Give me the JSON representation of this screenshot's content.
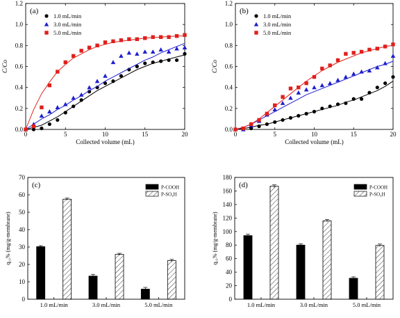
{
  "colors": {
    "series_1": "#000000",
    "series_2": "#1f1fcf",
    "series_3": "#e0201c",
    "bar_solid": "#000000"
  },
  "chart_data": [
    {
      "type": "scatter",
      "panel_label": "(a)",
      "xlabel": "Collected volume (mL)",
      "ylabel": "C/Co",
      "xlim": [
        0,
        20
      ],
      "ylim": [
        0,
        1.2
      ],
      "xticks": [
        0,
        5,
        10,
        15,
        20
      ],
      "yticks": [
        0.0,
        0.2,
        0.4,
        0.6,
        0.8,
        1.0,
        1.2
      ],
      "ytick_labels": [
        "0.0",
        "0.2",
        "0.4",
        "0.6",
        "0.8",
        "1.0",
        "1.2"
      ],
      "legend_position": "top-left",
      "series": [
        {
          "name": "1.0 mL/min",
          "marker": "circle",
          "color": "#000000",
          "x": [
            0,
            1,
            2,
            3,
            4,
            5,
            6,
            7,
            8,
            9,
            10,
            11,
            12,
            13,
            14,
            15,
            16,
            17,
            18,
            19,
            20
          ],
          "y": [
            0.0,
            0.0,
            0.01,
            0.05,
            0.09,
            0.16,
            0.22,
            0.28,
            0.36,
            0.4,
            0.44,
            0.46,
            0.51,
            0.57,
            0.6,
            0.63,
            0.64,
            0.65,
            0.66,
            0.66,
            0.72
          ],
          "fit": [
            [
              0,
              0
            ],
            [
              1,
              0.02
            ],
            [
              2,
              0.04
            ],
            [
              3,
              0.08
            ],
            [
              4,
              0.12
            ],
            [
              5,
              0.17
            ],
            [
              6,
              0.22
            ],
            [
              7,
              0.27
            ],
            [
              8,
              0.32
            ],
            [
              9,
              0.37
            ],
            [
              10,
              0.41
            ],
            [
              11,
              0.45
            ],
            [
              12,
              0.49
            ],
            [
              13,
              0.53
            ],
            [
              14,
              0.57
            ],
            [
              15,
              0.6
            ],
            [
              16,
              0.63
            ],
            [
              17,
              0.65
            ],
            [
              18,
              0.67
            ],
            [
              19,
              0.69
            ],
            [
              20,
              0.71
            ]
          ]
        },
        {
          "name": "3.0 mL/min",
          "marker": "triangle",
          "color": "#1f1fcf",
          "x": [
            0,
            1,
            2,
            3,
            4,
            5,
            6,
            7,
            8,
            9,
            10,
            11,
            12,
            13,
            14,
            15,
            16,
            17,
            18,
            19,
            20
          ],
          "y": [
            0.0,
            0.05,
            0.13,
            0.17,
            0.21,
            0.24,
            0.3,
            0.33,
            0.4,
            0.46,
            0.51,
            0.64,
            0.7,
            0.73,
            0.72,
            0.74,
            0.74,
            0.76,
            0.74,
            0.77,
            0.78
          ],
          "fit": [
            [
              0,
              0
            ],
            [
              1,
              0.05
            ],
            [
              2,
              0.1
            ],
            [
              3,
              0.14
            ],
            [
              4,
              0.19
            ],
            [
              5,
              0.23
            ],
            [
              6,
              0.28
            ],
            [
              7,
              0.32
            ],
            [
              8,
              0.37
            ],
            [
              9,
              0.41
            ],
            [
              10,
              0.46
            ],
            [
              11,
              0.5
            ],
            [
              12,
              0.54
            ],
            [
              13,
              0.58
            ],
            [
              14,
              0.62
            ],
            [
              15,
              0.66
            ],
            [
              16,
              0.69
            ],
            [
              17,
              0.73
            ],
            [
              18,
              0.76
            ],
            [
              19,
              0.79
            ],
            [
              20,
              0.82
            ]
          ]
        },
        {
          "name": "5.0 mL/min",
          "marker": "square",
          "color": "#e0201c",
          "x": [
            0,
            1,
            2,
            3,
            4,
            5,
            6,
            7,
            8,
            9,
            10,
            11,
            12,
            13,
            14,
            15,
            16,
            17,
            18,
            19,
            20
          ],
          "y": [
            0.0,
            0.03,
            0.21,
            0.42,
            0.55,
            0.64,
            0.7,
            0.75,
            0.78,
            0.8,
            0.83,
            0.84,
            0.85,
            0.86,
            0.86,
            0.87,
            0.88,
            0.88,
            0.88,
            0.89,
            0.9
          ],
          "fit": [
            [
              0,
              0
            ],
            [
              1,
              0.19
            ],
            [
              2,
              0.34
            ],
            [
              3,
              0.45
            ],
            [
              4,
              0.55
            ],
            [
              5,
              0.62
            ],
            [
              6,
              0.68
            ],
            [
              7,
              0.72
            ],
            [
              8,
              0.76
            ],
            [
              9,
              0.79
            ],
            [
              10,
              0.81
            ],
            [
              11,
              0.83
            ],
            [
              12,
              0.84
            ],
            [
              13,
              0.85
            ],
            [
              14,
              0.86
            ],
            [
              15,
              0.87
            ],
            [
              16,
              0.875
            ],
            [
              17,
              0.88
            ],
            [
              18,
              0.885
            ],
            [
              19,
              0.89
            ],
            [
              20,
              0.89
            ]
          ]
        }
      ]
    },
    {
      "type": "scatter",
      "panel_label": "(b)",
      "xlabel": "Collected volume (mL)",
      "ylabel": "C/Co",
      "xlim": [
        0,
        20
      ],
      "ylim": [
        0,
        1.2
      ],
      "xticks": [
        0,
        5,
        10,
        15,
        20
      ],
      "yticks": [
        0.0,
        0.2,
        0.4,
        0.6,
        0.8,
        1.0,
        1.2
      ],
      "ytick_labels": [
        "0.0",
        "0.2",
        "0.4",
        "0.6",
        "0.8",
        "1.0",
        "1.2"
      ],
      "legend_position": "top-left",
      "series": [
        {
          "name": "1.0 mL/min",
          "marker": "circle",
          "color": "#000000",
          "x": [
            0,
            1,
            2,
            3,
            4,
            5,
            6,
            7,
            8,
            9,
            10,
            11,
            12,
            13,
            14,
            15,
            16,
            17,
            18,
            19,
            20
          ],
          "y": [
            0.0,
            0.0,
            0.01,
            0.03,
            0.05,
            0.07,
            0.09,
            0.11,
            0.13,
            0.15,
            0.17,
            0.2,
            0.22,
            0.24,
            0.25,
            0.29,
            0.29,
            0.35,
            0.4,
            0.44,
            0.5
          ],
          "fit": [
            [
              0,
              0
            ],
            [
              1,
              0.01
            ],
            [
              2,
              0.02
            ],
            [
              3,
              0.04
            ],
            [
              4,
              0.05
            ],
            [
              5,
              0.07
            ],
            [
              6,
              0.09
            ],
            [
              7,
              0.11
            ],
            [
              8,
              0.13
            ],
            [
              9,
              0.15
            ],
            [
              10,
              0.17
            ],
            [
              11,
              0.19
            ],
            [
              12,
              0.21
            ],
            [
              13,
              0.23
            ],
            [
              14,
              0.26
            ],
            [
              15,
              0.28
            ],
            [
              16,
              0.31
            ],
            [
              17,
              0.34
            ],
            [
              18,
              0.37
            ],
            [
              19,
              0.41
            ],
            [
              20,
              0.46
            ]
          ]
        },
        {
          "name": "3.0 mL/min",
          "marker": "triangle",
          "color": "#1f1fcf",
          "x": [
            0,
            1,
            2,
            3,
            4,
            5,
            6,
            7,
            8,
            9,
            10,
            11,
            12,
            13,
            14,
            15,
            16,
            17,
            18,
            19,
            20
          ],
          "y": [
            0.0,
            0.0,
            0.04,
            0.08,
            0.14,
            0.19,
            0.25,
            0.3,
            0.35,
            0.38,
            0.4,
            0.42,
            0.44,
            0.47,
            0.5,
            0.53,
            0.55,
            0.56,
            0.59,
            0.63,
            0.7
          ],
          "fit": [
            [
              0,
              0
            ],
            [
              1,
              0.02
            ],
            [
              2,
              0.05
            ],
            [
              3,
              0.09
            ],
            [
              4,
              0.13
            ],
            [
              5,
              0.17
            ],
            [
              6,
              0.21
            ],
            [
              7,
              0.25
            ],
            [
              8,
              0.29
            ],
            [
              9,
              0.33
            ],
            [
              10,
              0.36
            ],
            [
              11,
              0.39
            ],
            [
              12,
              0.42
            ],
            [
              13,
              0.45
            ],
            [
              14,
              0.48
            ],
            [
              15,
              0.51
            ],
            [
              16,
              0.54
            ],
            [
              17,
              0.57
            ],
            [
              18,
              0.6
            ],
            [
              19,
              0.62
            ],
            [
              20,
              0.65
            ]
          ]
        },
        {
          "name": "5.0 mL/min",
          "marker": "square",
          "color": "#e0201c",
          "x": [
            0,
            1,
            2,
            3,
            4,
            5,
            6,
            7,
            8,
            9,
            10,
            11,
            12,
            13,
            14,
            15,
            16,
            17,
            18,
            19,
            20
          ],
          "y": [
            0.0,
            0.01,
            0.05,
            0.09,
            0.15,
            0.23,
            0.31,
            0.39,
            0.4,
            0.44,
            0.5,
            0.58,
            0.61,
            0.66,
            0.72,
            0.73,
            0.74,
            0.76,
            0.77,
            0.79,
            0.81
          ],
          "fit": [
            [
              0,
              0
            ],
            [
              1,
              0.02
            ],
            [
              2,
              0.05
            ],
            [
              3,
              0.1
            ],
            [
              4,
              0.16
            ],
            [
              5,
              0.22
            ],
            [
              6,
              0.28
            ],
            [
              7,
              0.34
            ],
            [
              8,
              0.4
            ],
            [
              9,
              0.46
            ],
            [
              10,
              0.51
            ],
            [
              11,
              0.56
            ],
            [
              12,
              0.6
            ],
            [
              13,
              0.64
            ],
            [
              14,
              0.67
            ],
            [
              15,
              0.7
            ],
            [
              16,
              0.73
            ],
            [
              17,
              0.75
            ],
            [
              18,
              0.77
            ],
            [
              19,
              0.79
            ],
            [
              20,
              0.8
            ]
          ]
        }
      ]
    },
    {
      "type": "bar",
      "panel_label": "(c)",
      "ylabel": "q₁₀% (mg/g-membrane)",
      "ylim": [
        0,
        70
      ],
      "yticks": [
        0,
        10,
        20,
        30,
        40,
        50,
        60,
        70
      ],
      "categories": [
        "1.0 mL/min",
        "3.0 mL/min",
        "5.0 mL/min"
      ],
      "legend_position": "top-right",
      "series": [
        {
          "name": "P-COOH",
          "fill": "solid",
          "values": [
            30.2,
            13.3,
            5.8
          ],
          "errors": [
            0.6,
            1.0,
            1.0
          ]
        },
        {
          "name": "P-SO₃H",
          "fill": "hatched",
          "values": [
            57.5,
            25.8,
            22.2
          ],
          "errors": [
            0.6,
            0.6,
            0.7
          ]
        }
      ]
    },
    {
      "type": "bar",
      "panel_label": "(d)",
      "ylabel": "q₁₀% (mg/g-membrane)",
      "ylim": [
        0,
        180
      ],
      "yticks": [
        0,
        20,
        40,
        60,
        80,
        100,
        120,
        140,
        160,
        180
      ],
      "categories": [
        "1.0 mL/min",
        "3.0 mL/min",
        "5.0 mL/min"
      ],
      "legend_position": "top-right",
      "series": [
        {
          "name": "P-COOH",
          "fill": "solid",
          "values": [
            94,
            80,
            31
          ],
          "errors": [
            2,
            2,
            2
          ]
        },
        {
          "name": "P-SO₃H",
          "fill": "hatched",
          "values": [
            167,
            116,
            79.5
          ],
          "errors": [
            2,
            2,
            2
          ]
        }
      ]
    }
  ]
}
